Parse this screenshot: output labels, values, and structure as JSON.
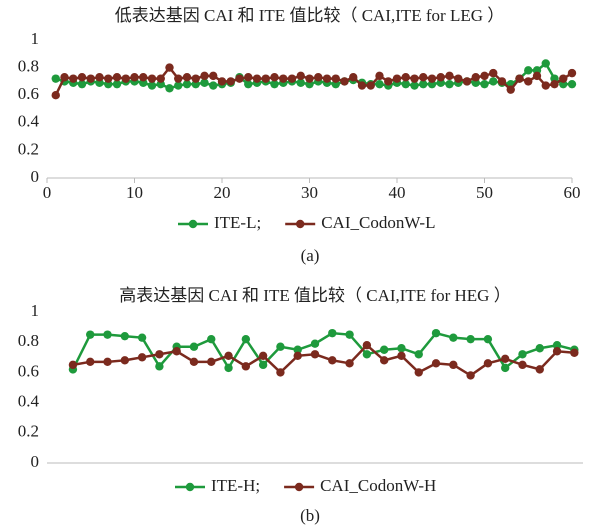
{
  "chart_data": [
    {
      "type": "line",
      "title": "低表达基因 CAI 和 ITE 值比较（ CAI,ITE for LEG ）",
      "caption": "(a)",
      "x": [
        1,
        2,
        3,
        4,
        5,
        6,
        7,
        8,
        9,
        10,
        11,
        12,
        13,
        14,
        15,
        16,
        17,
        18,
        19,
        20,
        21,
        22,
        23,
        24,
        25,
        26,
        27,
        28,
        29,
        30,
        31,
        32,
        33,
        34,
        35,
        36,
        37,
        38,
        39,
        40,
        41,
        42,
        43,
        44,
        45,
        46,
        47,
        48,
        49,
        50,
        51,
        52,
        53,
        54,
        55,
        56,
        57,
        58,
        59,
        60
      ],
      "series": [
        {
          "name": "ITE-L;",
          "color": "#1e9a3c",
          "values": [
            0.72,
            0.7,
            0.69,
            0.68,
            0.7,
            0.69,
            0.68,
            0.68,
            0.7,
            0.7,
            0.69,
            0.67,
            0.68,
            0.65,
            0.67,
            0.68,
            0.68,
            0.69,
            0.67,
            0.68,
            0.69,
            0.73,
            0.68,
            0.69,
            0.7,
            0.68,
            0.69,
            0.7,
            0.69,
            0.68,
            0.7,
            0.69,
            0.68,
            0.7,
            0.71,
            0.69,
            0.68,
            0.68,
            0.67,
            0.69,
            0.68,
            0.67,
            0.68,
            0.68,
            0.69,
            0.68,
            0.69,
            0.7,
            0.69,
            0.68,
            0.7,
            0.69,
            0.68,
            0.72,
            0.78,
            0.78,
            0.83,
            0.72,
            0.68,
            0.68
          ]
        },
        {
          "name": "CAI_CodonW-L",
          "color": "#7b2a1e",
          "values": [
            0.6,
            0.73,
            0.72,
            0.73,
            0.72,
            0.73,
            0.72,
            0.73,
            0.72,
            0.73,
            0.73,
            0.72,
            0.72,
            0.8,
            0.72,
            0.73,
            0.72,
            0.74,
            0.74,
            0.7,
            0.7,
            0.72,
            0.73,
            0.72,
            0.72,
            0.73,
            0.72,
            0.72,
            0.74,
            0.72,
            0.73,
            0.72,
            0.72,
            0.7,
            0.73,
            0.67,
            0.67,
            0.74,
            0.7,
            0.72,
            0.73,
            0.72,
            0.73,
            0.72,
            0.73,
            0.74,
            0.72,
            0.7,
            0.73,
            0.74,
            0.76,
            0.7,
            0.64,
            0.72,
            0.7,
            0.74,
            0.67,
            0.68,
            0.72,
            0.76
          ]
        }
      ],
      "xlim": [
        0,
        60
      ],
      "xticks": [
        0,
        10,
        20,
        30,
        40,
        50,
        60
      ],
      "ylim": [
        0,
        1
      ],
      "yticks": [
        0,
        0.2,
        0.4,
        0.6,
        0.8,
        1
      ],
      "grid": false,
      "legend": "bottom"
    },
    {
      "type": "line",
      "title": "高表达基因 CAI 和 ITE 值比较（ CAI,ITE for HEG ）",
      "caption": "(b)",
      "x": [
        1,
        2,
        3,
        4,
        5,
        6,
        7,
        8,
        9,
        10,
        11,
        12,
        13,
        14,
        15,
        16,
        17,
        18,
        19,
        20,
        21,
        22,
        23,
        24,
        25,
        26,
        27,
        28,
        29,
        30
      ],
      "series": [
        {
          "name": "ITE-H;",
          "color": "#1e9a3c",
          "values": [
            0.62,
            0.85,
            0.85,
            0.84,
            0.83,
            0.64,
            0.77,
            0.77,
            0.82,
            0.63,
            0.82,
            0.65,
            0.77,
            0.75,
            0.79,
            0.86,
            0.85,
            0.72,
            0.75,
            0.76,
            0.72,
            0.86,
            0.83,
            0.82,
            0.82,
            0.63,
            0.72,
            0.76,
            0.78,
            0.75
          ]
        },
        {
          "name": "CAI_CodonW-H",
          "color": "#7b2a1e",
          "values": [
            0.65,
            0.67,
            0.67,
            0.68,
            0.7,
            0.72,
            0.74,
            0.67,
            0.67,
            0.71,
            0.64,
            0.71,
            0.6,
            0.71,
            0.72,
            0.68,
            0.66,
            0.78,
            0.68,
            0.71,
            0.6,
            0.66,
            0.65,
            0.58,
            0.66,
            0.69,
            0.65,
            0.62,
            0.74,
            0.73
          ]
        }
      ],
      "xlim": [
        -0.5,
        30.5
      ],
      "ylim": [
        0,
        1
      ],
      "yticks": [
        0,
        0.2,
        0.4,
        0.6,
        0.8,
        1
      ],
      "grid": false,
      "legend": "bottom"
    }
  ]
}
